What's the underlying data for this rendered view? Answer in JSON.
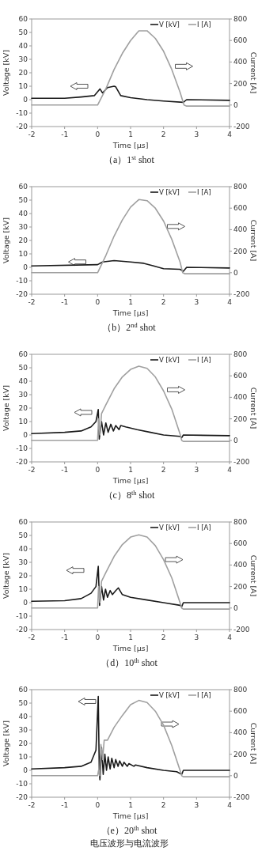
{
  "chart_data": [
    {
      "type": "line",
      "title": "（a）1$^{st}$ shot",
      "xlabel": "Time [µs]",
      "ylabel": "Voltage [kV]",
      "y2label": "Current [A]",
      "legend": "top right",
      "xlim": [
        -2,
        4
      ],
      "xticks": [
        -2,
        -1,
        0,
        1,
        2,
        3,
        4
      ],
      "ylim": [
        -20,
        60
      ],
      "yticks": [
        -20,
        -10,
        0,
        10,
        20,
        30,
        40,
        50,
        60
      ],
      "y2lim": [
        -200,
        800
      ],
      "y2ticks": [
        -200,
        0,
        200,
        400,
        600,
        800
      ],
      "series": [
        {
          "name": "V [kV]",
          "color": "#1a1a1a",
          "x": [
            -2,
            -1,
            -0.5,
            -0.1,
            0.07,
            0.15,
            0.3,
            0.5,
            0.55,
            0.7,
            1,
            1.5,
            2,
            2.6,
            2.7,
            4
          ],
          "values": [
            1,
            1,
            2,
            3,
            8,
            5,
            9,
            10,
            9.5,
            3,
            1.5,
            0,
            -1,
            -2,
            0,
            -0.5
          ]
        },
        {
          "name": "I [A]",
          "color": "#a0a0a0",
          "axis": "y2",
          "x": [
            -2,
            0,
            0.25,
            0.5,
            0.75,
            1,
            1.25,
            1.5,
            1.75,
            2,
            2.25,
            2.5,
            2.62,
            2.7,
            4
          ],
          "values": [
            0,
            0,
            150,
            330,
            480,
            600,
            690,
            690,
            620,
            500,
            330,
            120,
            0,
            -10,
            -10
          ]
        }
      ]
    },
    {
      "type": "line",
      "title": "（b）2$^{nd}$ shot",
      "xlabel": "Time [µs]",
      "ylabel": "Voltage [kV]",
      "y2label": "Current [A]",
      "legend": "top right",
      "xlim": [
        -2,
        4
      ],
      "xticks": [
        -2,
        -1,
        0,
        1,
        2,
        3,
        4
      ],
      "ylim": [
        -20,
        60
      ],
      "yticks": [
        -20,
        -10,
        0,
        10,
        20,
        30,
        40,
        50,
        60
      ],
      "y2lim": [
        -200,
        800
      ],
      "y2ticks": [
        -200,
        0,
        200,
        400,
        600,
        800
      ],
      "series": [
        {
          "name": "V [kV]",
          "color": "#1a1a1a",
          "x": [
            -2,
            0,
            0.15,
            0.5,
            1,
            1.4,
            1.7,
            2,
            2.5,
            2.6,
            2.7,
            4
          ],
          "values": [
            1,
            2,
            4,
            5,
            4,
            3,
            1,
            -1,
            -1.5,
            -3,
            0,
            -0.5
          ]
        },
        {
          "name": "I [A]",
          "color": "#a0a0a0",
          "axis": "y2",
          "x": [
            -2,
            0,
            0.25,
            0.5,
            0.75,
            1,
            1.25,
            1.5,
            1.75,
            2,
            2.25,
            2.5,
            2.58,
            2.65,
            4
          ],
          "values": [
            0,
            0,
            160,
            340,
            490,
            610,
            680,
            670,
            600,
            480,
            310,
            100,
            0,
            -10,
            -10
          ]
        }
      ]
    },
    {
      "type": "line",
      "title": "（c）8$^{th}$ shot",
      "xlabel": "Time [µs]",
      "ylabel": "Voltage [kV]",
      "y2label": "Current [A]",
      "legend": "top right",
      "xlim": [
        -2,
        4
      ],
      "xticks": [
        -2,
        -1,
        0,
        1,
        2,
        3,
        4
      ],
      "ylim": [
        -20,
        60
      ],
      "yticks": [
        -20,
        -10,
        0,
        10,
        20,
        30,
        40,
        50,
        60
      ],
      "y2lim": [
        -200,
        800
      ],
      "y2ticks": [
        -200,
        0,
        200,
        400,
        600,
        800
      ],
      "series": [
        {
          "name": "V [kV]",
          "color": "#1a1a1a",
          "x": [
            -2,
            -1,
            -0.5,
            -0.2,
            -0.05,
            0.02,
            0.05,
            0.12,
            0.18,
            0.25,
            0.32,
            0.4,
            0.48,
            0.55,
            0.65,
            0.7,
            0.85,
            1.2,
            1.6,
            2,
            2.5,
            2.55,
            2.6,
            4
          ],
          "values": [
            1,
            2,
            3,
            6,
            10,
            19,
            -3,
            10,
            0,
            9,
            2,
            8,
            3,
            7,
            4,
            7,
            6,
            4,
            2,
            0,
            -1,
            -2,
            0,
            -0.5
          ]
        },
        {
          "name": "I [A]",
          "color": "#a0a0a0",
          "axis": "y2",
          "x": [
            -2,
            0,
            0.03,
            0.07,
            0.12,
            0.25,
            0.5,
            0.75,
            1,
            1.25,
            1.5,
            1.75,
            2,
            2.25,
            2.5,
            2.55,
            2.6,
            4
          ],
          "values": [
            0,
            0,
            200,
            50,
            250,
            330,
            480,
            590,
            660,
            690,
            670,
            590,
            460,
            290,
            60,
            0,
            -10,
            -10
          ]
        }
      ]
    },
    {
      "type": "line",
      "title": "（d）10$^{th}$ shot",
      "xlabel": "Time [µs]",
      "ylabel": "Voltage [kV]",
      "y2label": "Current [A]",
      "legend": "top right",
      "xlim": [
        -2,
        4
      ],
      "xticks": [
        -2,
        -1,
        0,
        1,
        2,
        3,
        4
      ],
      "ylim": [
        -20,
        60
      ],
      "yticks": [
        -20,
        -10,
        0,
        10,
        20,
        30,
        40,
        50,
        60
      ],
      "y2lim": [
        -200,
        800
      ],
      "y2ticks": [
        -200,
        0,
        200,
        400,
        600,
        800
      ],
      "series": [
        {
          "name": "V [kV]",
          "color": "#1a1a1a",
          "x": [
            -2,
            -1,
            -0.5,
            -0.2,
            -0.05,
            0.02,
            0.06,
            0.12,
            0.18,
            0.24,
            0.3,
            0.38,
            0.45,
            0.55,
            0.63,
            0.75,
            1,
            1.5,
            2,
            2.5,
            2.55,
            2.6,
            4
          ],
          "values": [
            1,
            1.5,
            3,
            7,
            12,
            27,
            -2,
            12,
            2,
            10,
            4,
            9,
            6,
            9,
            11,
            6,
            4,
            2,
            0,
            -2,
            -3,
            0,
            0
          ]
        },
        {
          "name": "I [A]",
          "color": "#a0a0a0",
          "axis": "y2",
          "x": [
            -2,
            0,
            0.03,
            0.07,
            0.12,
            0.25,
            0.5,
            0.75,
            1,
            1.25,
            1.5,
            1.75,
            2,
            2.25,
            2.5,
            2.55,
            2.6,
            4
          ],
          "values": [
            0,
            0,
            200,
            50,
            250,
            330,
            480,
            590,
            660,
            680,
            660,
            580,
            450,
            280,
            50,
            0,
            -10,
            -10
          ]
        }
      ]
    },
    {
      "type": "line",
      "title": "（e）20$^{th}$ shot",
      "xlabel": "Time [µs]",
      "ylabel": "Voltage [kV]",
      "y2label": "Current [A]",
      "legend": "top right",
      "xlim": [
        -2,
        4
      ],
      "xticks": [
        -2,
        -1,
        0,
        1,
        2,
        3,
        4
      ],
      "ylim": [
        -20,
        60
      ],
      "yticks": [
        -20,
        -10,
        0,
        10,
        20,
        30,
        40,
        50,
        60
      ],
      "y2lim": [
        -200,
        800
      ],
      "y2ticks": [
        -200,
        0,
        200,
        400,
        600,
        800
      ],
      "annotations": [
        "电压波形与电流波形"
      ],
      "series": [
        {
          "name": "V [kV]",
          "color": "#1a1a1a",
          "x": [
            -2,
            -1,
            -0.5,
            -0.2,
            -0.05,
            0.02,
            0.05,
            0.07,
            0.12,
            0.17,
            0.22,
            0.27,
            0.32,
            0.38,
            0.43,
            0.5,
            0.55,
            0.62,
            0.67,
            0.75,
            0.8,
            0.9,
            0.95,
            1.1,
            1.15,
            1.5,
            2,
            2.4,
            2.55,
            2.6,
            4
          ],
          "values": [
            1,
            2,
            3,
            6,
            15,
            55,
            0,
            -7,
            17,
            -3,
            12,
            0,
            10,
            1,
            9,
            2,
            8,
            3,
            7,
            3,
            6,
            3,
            5,
            3,
            4,
            2,
            0,
            -1,
            -3,
            0,
            0
          ]
        },
        {
          "name": "I [A]",
          "color": "#a0a0a0",
          "axis": "y2",
          "x": [
            -2,
            0,
            0.03,
            0.06,
            0.1,
            0.15,
            0.2,
            0.3,
            0.5,
            0.75,
            1,
            1.25,
            1.5,
            1.75,
            2,
            2.25,
            2.5,
            2.55,
            2.6,
            4
          ],
          "values": [
            0,
            0,
            50,
            0,
            290,
            150,
            330,
            330,
            450,
            560,
            660,
            700,
            680,
            600,
            470,
            280,
            50,
            0,
            -10,
            -10
          ]
        }
      ]
    }
  ]
}
